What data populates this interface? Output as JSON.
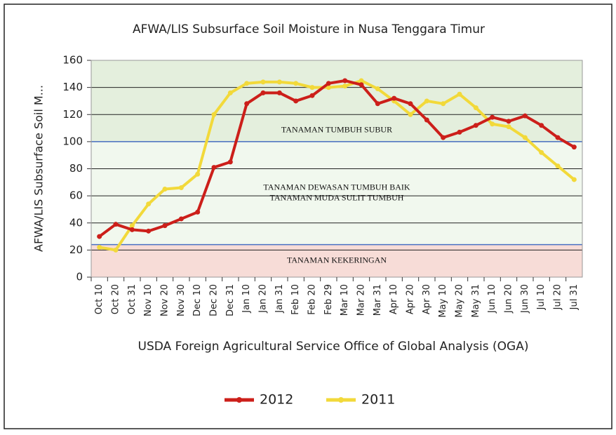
{
  "chart_data": {
    "type": "line",
    "title": "AFWA/LIS Subsurface Soil Moisture in Nusa Tenggara Timur",
    "y_label": "AFWA/LIS Subsurface Soil M...",
    "x_label": "USDA Foreign Agricultural Service Office of Global Analysis (OGA)",
    "categories": [
      "Oct 10",
      "Oct 20",
      "Oct 31",
      "Nov 10",
      "Nov 20",
      "Nov 30",
      "Dec 10",
      "Dec 20",
      "Dec 31",
      "Jan 10",
      "Jan 20",
      "Jan 31",
      "Feb 10",
      "Feb 20",
      "Feb 29",
      "Mar 10",
      "Mar 20",
      "Mar 31",
      "Apr 10",
      "Apr 20",
      "Apr 30",
      "May 10",
      "May 20",
      "May 31",
      "Jun 10",
      "Jun 20",
      "Jun 30",
      "Jul 10",
      "Jul 20",
      "Jul 31"
    ],
    "series": [
      {
        "name": "2012",
        "color": "#cc1f1a",
        "values": [
          30,
          39,
          35,
          34,
          38,
          43,
          48,
          81,
          85,
          128,
          136,
          136,
          130,
          134,
          143,
          145,
          142,
          128,
          132,
          128,
          116,
          103,
          107,
          112,
          118,
          115,
          119,
          112,
          103,
          96
        ]
      },
      {
        "name": "2011",
        "color": "#f2d93a",
        "values": [
          22,
          20,
          38,
          54,
          65,
          66,
          76,
          120,
          136,
          143,
          144,
          144,
          143,
          140,
          140,
          141,
          145,
          139,
          130,
          120,
          130,
          128,
          135,
          125,
          113,
          111,
          103,
          92,
          82,
          72
        ]
      }
    ],
    "bands": [
      {
        "from": 100,
        "to": 160,
        "color": "#e4efdd",
        "label": [
          "TANAMAN TUMBUH SUBUR"
        ]
      },
      {
        "from": 24,
        "to": 100,
        "color": "#f1f8ee",
        "label": [
          "TANAMAN DEWASAN TUMBUH BAIK",
          "TANAMAN MUDA SULIT TUMBUH"
        ]
      },
      {
        "from": 0,
        "to": 24,
        "color": "#f7dcd7",
        "label": [
          "TANAMAN KEKERINGAN"
        ]
      }
    ],
    "band_edge_color": "#4a72c4",
    "ylim": [
      0,
      160
    ],
    "yticks": [
      0,
      20,
      40,
      60,
      80,
      100,
      120,
      140,
      160
    ],
    "grid": true,
    "legend": "bottom"
  }
}
